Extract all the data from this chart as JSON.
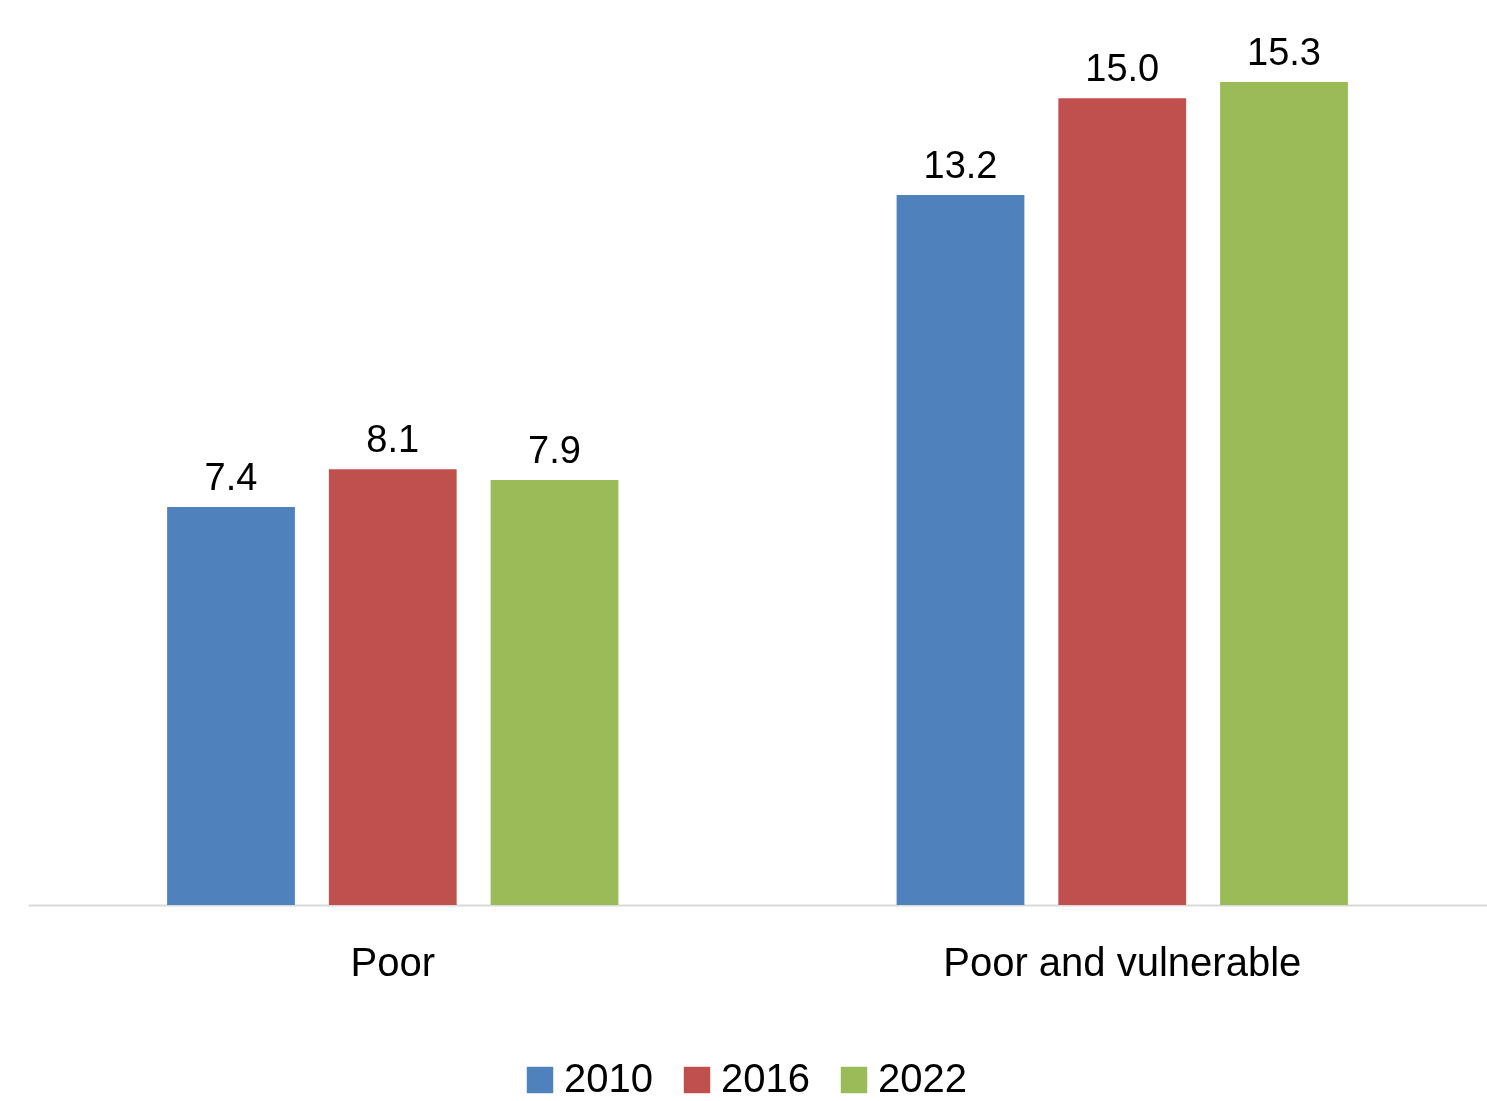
{
  "chart_data": {
    "type": "bar",
    "categories": [
      "Poor",
      "Poor and vulnerable"
    ],
    "series": [
      {
        "name": "2010",
        "color": "#4f81bd",
        "values": [
          7.4,
          13.2
        ],
        "value_labels": [
          "7.4",
          "13.2"
        ]
      },
      {
        "name": "2016",
        "color": "#c0504d",
        "values": [
          8.1,
          15.0
        ],
        "value_labels": [
          "8.1",
          "15.0"
        ]
      },
      {
        "name": "2022",
        "color": "#9bbb59",
        "values": [
          7.9,
          15.3
        ],
        "value_labels": [
          "7.9",
          "15.3"
        ]
      }
    ],
    "legend": "bottom",
    "grid": false
  }
}
